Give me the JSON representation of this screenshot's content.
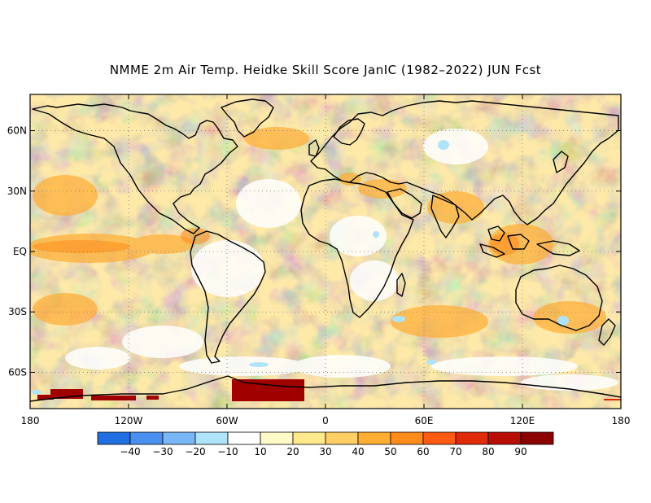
{
  "title": "NMME 2m Air Temp. Heidke Skill Score JanIC (1982–2022) JUN Fcst",
  "map": {
    "lat_labels": [
      "60N",
      "30N",
      "EQ",
      "30S",
      "60S"
    ],
    "lat_values": [
      60,
      30,
      0,
      -30,
      -60
    ],
    "lon_labels": [
      "180",
      "120W",
      "60W",
      "0",
      "60E",
      "120E",
      "180"
    ],
    "lon_values": [
      -180,
      -120,
      -60,
      0,
      60,
      120,
      180
    ],
    "lat_range": [
      -78,
      78
    ],
    "lon_range": [
      -180,
      180
    ],
    "grid": "dotted"
  },
  "colorbar": {
    "levels": [
      "−40",
      "−30",
      "−20",
      "−10",
      "10",
      "20",
      "30",
      "40",
      "50",
      "60",
      "70",
      "80",
      "90"
    ],
    "colors": [
      "#1f6fe0",
      "#4a90f0",
      "#7ab7f7",
      "#aee3fa",
      "#ffffff",
      "#fffac8",
      "#ffe98c",
      "#ffcf66",
      "#ffad33",
      "#ff8c1a",
      "#ff5a12",
      "#e02a0a",
      "#b80d05",
      "#8c0000"
    ]
  }
}
